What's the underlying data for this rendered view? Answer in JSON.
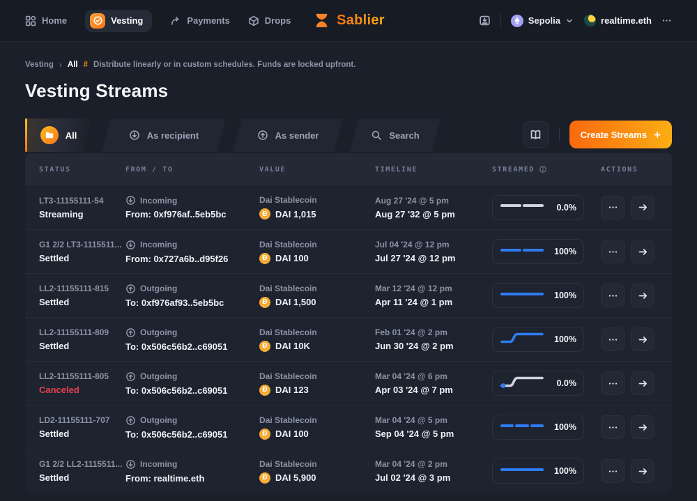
{
  "navbar": {
    "items": [
      {
        "label": "Home"
      },
      {
        "label": "Vesting"
      },
      {
        "label": "Payments"
      },
      {
        "label": "Drops"
      }
    ],
    "brand": "Sablier",
    "network": {
      "label": "Sepolia"
    },
    "account": {
      "label": "realtime.eth"
    }
  },
  "breadcrumb": {
    "root": "Vesting",
    "separator": "›",
    "current": "All",
    "hash": "#",
    "description": "Distribute linearly or in custom schedules. Funds are locked upfront."
  },
  "page_title": "Vesting Streams",
  "tabs": [
    {
      "label": "All",
      "active": true
    },
    {
      "label": "As recipient",
      "active": false
    },
    {
      "label": "As sender",
      "active": false
    },
    {
      "label": "Search",
      "active": false
    }
  ],
  "toolbar": {
    "create_label": "Create Streams",
    "plus": "+"
  },
  "table": {
    "columns": [
      "STATUS",
      "FROM / TO",
      "VALUE",
      "TIMELINE",
      "STREAMED",
      "ACTIONS"
    ],
    "rows": [
      {
        "id": "LT3-11155111-54",
        "status": "Streaming",
        "canceled": false,
        "direction": "incoming",
        "direction_label": "Incoming",
        "counterparty": "From: 0xf976af..5eb5bc",
        "token": "Dai Stablecoin",
        "amount": "DAI 1,015",
        "start": "Aug 27 '24 @ 5 pm",
        "end": "Aug 27 '32 @ 5 pm",
        "spark": "dash2-gray",
        "percent": "0.0%"
      },
      {
        "id": "G1 2/2 LT3-1115511...",
        "status": "Settled",
        "canceled": false,
        "direction": "incoming",
        "direction_label": "Incoming",
        "counterparty": "From: 0x727a6b..d95f26",
        "token": "Dai Stablecoin",
        "amount": "DAI 100",
        "start": "Jul 04 '24 @ 12 pm",
        "end": "Jul 27 '24 @ 12 pm",
        "spark": "dash2-blue",
        "percent": "100%"
      },
      {
        "id": "LL2-11155111-815",
        "status": "Settled",
        "canceled": false,
        "direction": "outgoing",
        "direction_label": "Outgoing",
        "counterparty": "To: 0xf976af93..5eb5bc",
        "token": "Dai Stablecoin",
        "amount": "DAI 1,500",
        "start": "Mar 12 '24 @ 12 pm",
        "end": "Apr 11 '24 @ 1 pm",
        "spark": "solid-blue",
        "percent": "100%"
      },
      {
        "id": "LL2-11155111-809",
        "status": "Settled",
        "canceled": false,
        "direction": "outgoing",
        "direction_label": "Outgoing",
        "counterparty": "To: 0x506c56b2..c69051",
        "token": "Dai Stablecoin",
        "amount": "DAI 10K",
        "start": "Feb 01 '24 @ 2 pm",
        "end": "Jun 30 '24 @ 2 pm",
        "spark": "step-blue",
        "percent": "100%"
      },
      {
        "id": "LL2-11155111-805",
        "status": "Canceled",
        "canceled": true,
        "direction": "outgoing",
        "direction_label": "Outgoing",
        "counterparty": "To: 0x506c56b2..c69051",
        "token": "Dai Stablecoin",
        "amount": "DAI 123",
        "start": "Mar 04 '24 @ 6 pm",
        "end": "Apr 03 '24 @ 7 pm",
        "spark": "step-gray-dot",
        "percent": "0.0%"
      },
      {
        "id": "LD2-11155111-707",
        "status": "Settled",
        "canceled": false,
        "direction": "outgoing",
        "direction_label": "Outgoing",
        "counterparty": "To: 0x506c56b2..c69051",
        "token": "Dai Stablecoin",
        "amount": "DAI 100",
        "start": "Mar 04 '24 @ 5 pm",
        "end": "Sep 04 '24 @ 5 pm",
        "spark": "dash3-blue",
        "percent": "100%"
      },
      {
        "id": "G1 2/2 LL2-1115511...",
        "status": "Settled",
        "canceled": false,
        "direction": "incoming",
        "direction_label": "Incoming",
        "counterparty": "From: realtime.eth",
        "token": "Dai Stablecoin",
        "amount": "DAI 5,900",
        "start": "Mar 04 '24 @ 2 pm",
        "end": "Jul 02 '24 @ 3 pm",
        "spark": "solid-blue",
        "percent": "100%"
      }
    ]
  },
  "colors": {
    "accent_orange": "#f97316",
    "progress_blue": "#2f7bf2",
    "progress_gray": "#cdd3de",
    "canceled_red": "#e8414e",
    "dai_gold": "#f5ac37"
  }
}
